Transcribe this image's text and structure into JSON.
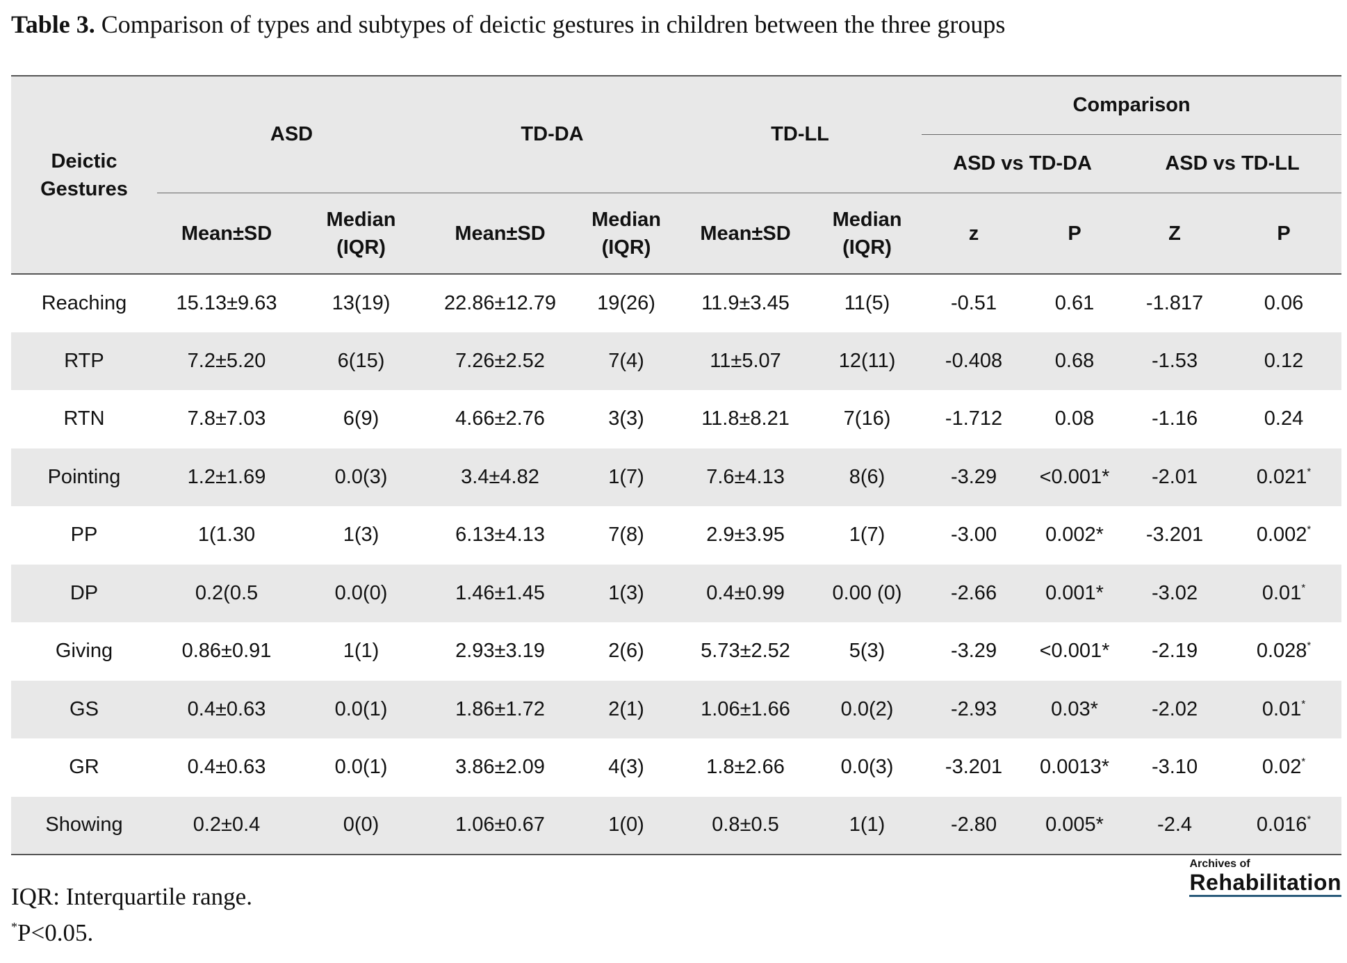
{
  "caption": {
    "label": "Table 3.",
    "text": " Comparison of types and subtypes of deictic gestures in children between the three groups"
  },
  "header": {
    "row_label": "Deictic Gestures",
    "groups": [
      "ASD",
      "TD-DA",
      "TD-LL"
    ],
    "comparison": "Comparison",
    "comparison_pairs": [
      "ASD vs TD-DA",
      "ASD vs TD-LL"
    ],
    "mean_sd": "Mean±SD",
    "median_iqr_line1": "Median",
    "median_iqr_line2": "(IQR)",
    "z1": "z",
    "p1": "P",
    "z2": "Z",
    "p2": "P"
  },
  "rows": [
    {
      "name": "Reaching",
      "asd_mean": "15.13±9.63",
      "asd_med": "13(19)",
      "tdda_mean": "22.86±12.79",
      "tdda_med": "19(26)",
      "tdll_mean": "11.9±3.45",
      "tdll_med": "11(5)",
      "z1": "-0.51",
      "p1": "0.61",
      "z2": "-1.817",
      "p2": "0.06",
      "star": ""
    },
    {
      "name": "RTP",
      "asd_mean": "7.2±5.20",
      "asd_med": "6(15)",
      "tdda_mean": "7.26±2.52",
      "tdda_med": "7(4)",
      "tdll_mean": "11±5.07",
      "tdll_med": "12(11)",
      "z1": "-0.408",
      "p1": "0.68",
      "z2": "-1.53",
      "p2": "0.12",
      "star": ""
    },
    {
      "name": "RTN",
      "asd_mean": "7.8±7.03",
      "asd_med": "6(9)",
      "tdda_mean": "4.66±2.76",
      "tdda_med": "3(3)",
      "tdll_mean": "11.8±8.21",
      "tdll_med": "7(16)",
      "z1": "-1.712",
      "p1": "0.08",
      "z2": "-1.16",
      "p2": "0.24",
      "star": ""
    },
    {
      "name": "Pointing",
      "asd_mean": "1.2±1.69",
      "asd_med": "0.0(3)",
      "tdda_mean": "3.4±4.82",
      "tdda_med": "1(7)",
      "tdll_mean": "7.6±4.13",
      "tdll_med": "8(6)",
      "z1": "-3.29",
      "p1": "<0.001*",
      "z2": "-2.01",
      "p2": "0.021",
      "star": "*"
    },
    {
      "name": "PP",
      "asd_mean": "1(1.30",
      "asd_med": "1(3)",
      "tdda_mean": "6.13±4.13",
      "tdda_med": "7(8)",
      "tdll_mean": "2.9±3.95",
      "tdll_med": "1(7)",
      "z1": "-3.00",
      "p1": "0.002*",
      "z2": "-3.201",
      "p2": "0.002",
      "star": "*"
    },
    {
      "name": "DP",
      "asd_mean": "0.2(0.5",
      "asd_med": "0.0(0)",
      "tdda_mean": "1.46±1.45",
      "tdda_med": "1(3)",
      "tdll_mean": "0.4±0.99",
      "tdll_med": "0.00 (0)",
      "z1": "-2.66",
      "p1": "0.001*",
      "z2": "-3.02",
      "p2": "0.01",
      "star": "*"
    },
    {
      "name": "Giving",
      "asd_mean": "0.86±0.91",
      "asd_med": "1(1)",
      "tdda_mean": "2.93±3.19",
      "tdda_med": "2(6)",
      "tdll_mean": "5.73±2.52",
      "tdll_med": "5(3)",
      "z1": "-3.29",
      "p1": "<0.001*",
      "z2": "-2.19",
      "p2": "0.028",
      "star": "*"
    },
    {
      "name": "GS",
      "asd_mean": "0.4±0.63",
      "asd_med": "0.0(1)",
      "tdda_mean": "1.86±1.72",
      "tdda_med": "2(1)",
      "tdll_mean": "1.06±1.66",
      "tdll_med": "0.0(2)",
      "z1": "-2.93",
      "p1": "0.03*",
      "z2": "-2.02",
      "p2": "0.01",
      "star": "*"
    },
    {
      "name": "GR",
      "asd_mean": "0.4±0.63",
      "asd_med": "0.0(1)",
      "tdda_mean": "3.86±2.09",
      "tdda_med": "4(3)",
      "tdll_mean": "1.8±2.66",
      "tdll_med": "0.0(3)",
      "z1": "-3.201",
      "p1": "0.0013*",
      "z2": "-3.10",
      "p2": "0.02",
      "star": "*"
    },
    {
      "name": "Showing",
      "asd_mean": "0.2±0.4",
      "asd_med": "0(0)",
      "tdda_mean": "1.06±0.67",
      "tdda_med": "1(0)",
      "tdll_mean": "0.8±0.5",
      "tdll_med": "1(1)",
      "z1": "-2.80",
      "p1": "0.005*",
      "z2": "-2.4",
      "p2": "0.016",
      "star": "*"
    }
  ],
  "footnotes": {
    "iqr": "IQR: Interquartile range.",
    "sig_star": "*",
    "sig_text": "P<0.05."
  },
  "logo": {
    "small": "Archives of",
    "big": "Rehabilitation"
  }
}
